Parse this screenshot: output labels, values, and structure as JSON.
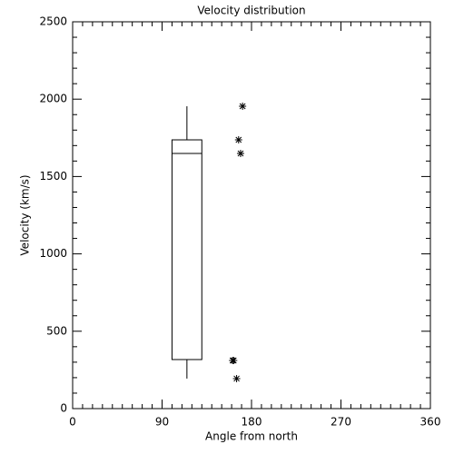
{
  "chart_data": {
    "type": "box",
    "title": "Velocity distribution",
    "x_label": "Angle from north",
    "y_label": "Velocity (km/s)",
    "xlim": [
      0,
      360
    ],
    "xticks": [
      0,
      90,
      180,
      270,
      360
    ],
    "ylim": [
      0,
      2500
    ],
    "yticks": [
      0,
      500,
      1000,
      1500,
      2000,
      2500
    ],
    "box": {
      "x": 115,
      "width": 30,
      "whisker_low": 194,
      "q1": 317,
      "median": 1649,
      "q3": 1737,
      "whisker_high": 1954
    },
    "outliers": {
      "x": [
        171,
        167,
        169,
        162,
        161,
        165
      ],
      "y": [
        1954,
        1737,
        1649,
        311,
        311,
        194
      ]
    },
    "color": "#000000"
  }
}
